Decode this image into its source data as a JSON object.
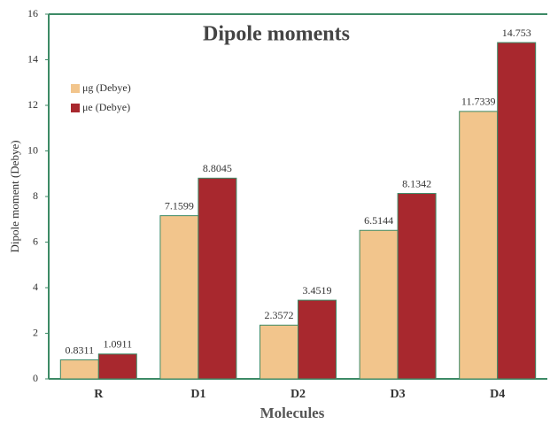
{
  "chart_data": {
    "type": "bar",
    "title": "Dipole moments",
    "x_label": "Molecules",
    "y_label": "Dipole moment (Debye)",
    "categories": [
      "R",
      "D1",
      "D2",
      "D3",
      "D4"
    ],
    "series": [
      {
        "name": "μg (Debye)",
        "color": "#f2c58c",
        "values": [
          0.8311,
          7.1599,
          2.3572,
          6.5144,
          11.7339
        ]
      },
      {
        "name": "μe (Debye)",
        "color": "#a8282e",
        "values": [
          1.0911,
          8.8045,
          3.4519,
          8.1342,
          14.753
        ]
      }
    ],
    "ylim": [
      0,
      16
    ],
    "yticks": [
      0,
      2,
      4,
      6,
      8,
      10,
      12,
      14,
      16
    ],
    "grid": false,
    "legend": "upper left"
  }
}
